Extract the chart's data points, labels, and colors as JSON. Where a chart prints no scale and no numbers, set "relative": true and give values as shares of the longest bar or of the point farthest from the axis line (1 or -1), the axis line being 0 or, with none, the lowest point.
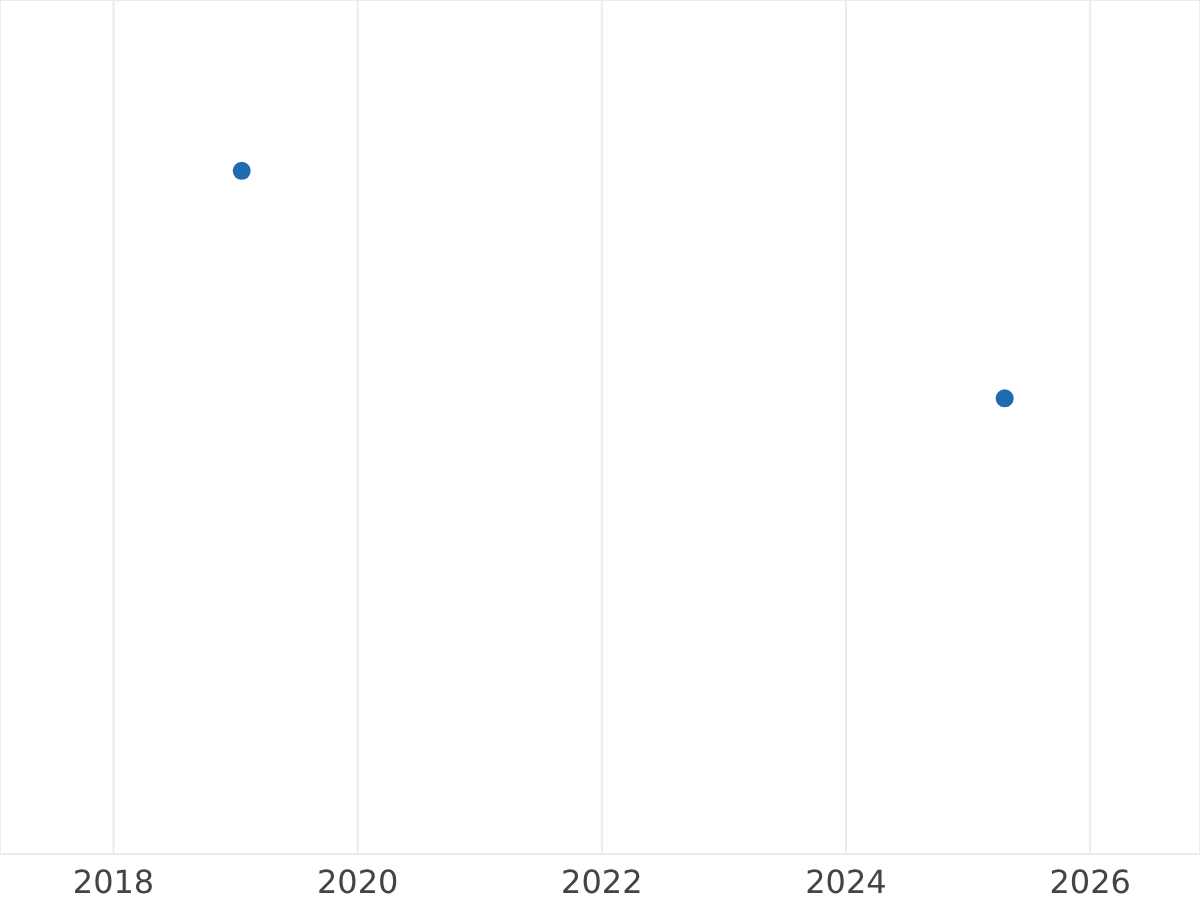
{
  "chart_data": {
    "type": "scatter",
    "relative": true,
    "x": [
      2019.05,
      2025.3
    ],
    "series": [
      {
        "color": "#1f6bb0",
        "values": [
          1,
          0.667
        ]
      }
    ],
    "xlim": [
      2017.07,
      2026.9
    ],
    "xticks": [
      2018,
      2020,
      2022,
      2024,
      2026
    ],
    "grid": true,
    "marker": "circle",
    "legend": false
  }
}
